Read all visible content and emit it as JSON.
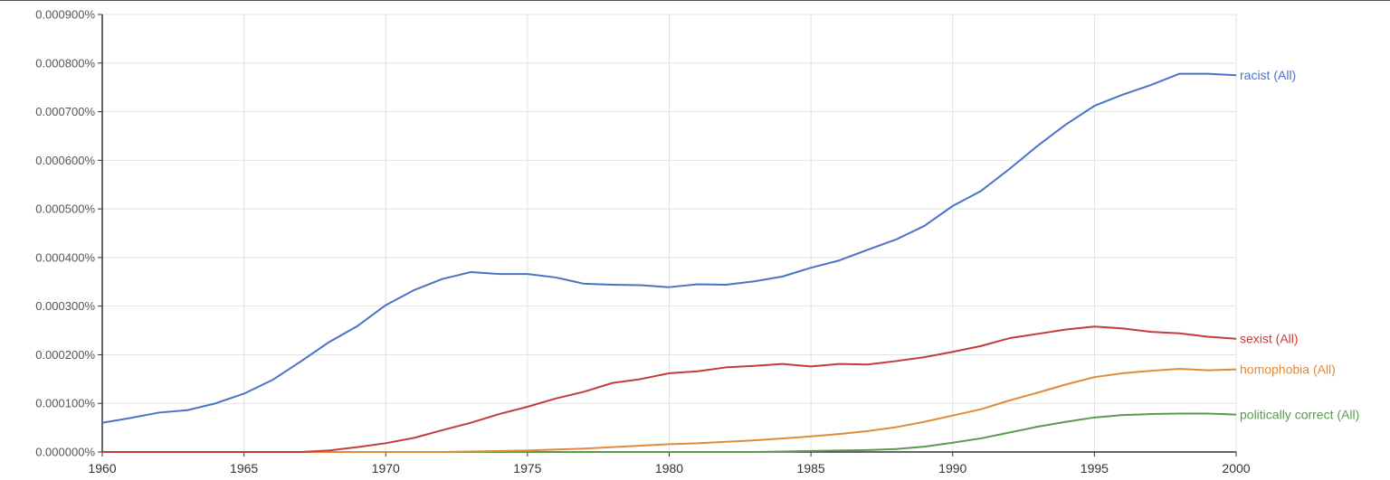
{
  "chart_data": {
    "type": "line",
    "title": "",
    "xlabel": "",
    "ylabel": "",
    "xlim": [
      1960,
      2000
    ],
    "ylim": [
      0,
      0.0009
    ],
    "grid": true,
    "legend": "end-of-line labels",
    "x_ticks": [
      "1960",
      "1965",
      "1970",
      "1975",
      "1980",
      "1985",
      "1990",
      "1995",
      "2000"
    ],
    "y_ticks": [
      "0.000000%",
      "0.000100%",
      "0.000200%",
      "0.000300%",
      "0.000400%",
      "0.000500%",
      "0.000600%",
      "0.000700%",
      "0.000800%",
      "0.000900%"
    ],
    "x": [
      1960,
      1961,
      1962,
      1963,
      1964,
      1965,
      1966,
      1967,
      1968,
      1969,
      1970,
      1971,
      1972,
      1973,
      1974,
      1975,
      1976,
      1977,
      1978,
      1979,
      1980,
      1981,
      1982,
      1983,
      1984,
      1985,
      1986,
      1987,
      1988,
      1989,
      1990,
      1991,
      1992,
      1993,
      1994,
      1995,
      1996,
      1997,
      1998,
      1999,
      2000
    ],
    "series": [
      {
        "name": "racist (All)",
        "color": "#4a73c6",
        "values": [
          6e-05,
          7e-05,
          8.1e-05,
          8.6e-05,
          0.0001,
          0.00012,
          0.000148,
          0.000186,
          0.000226,
          0.000259,
          0.000302,
          0.000333,
          0.000356,
          0.00037,
          0.000366,
          0.000366,
          0.000359,
          0.000346,
          0.000344,
          0.000343,
          0.000339,
          0.000345,
          0.000344,
          0.000351,
          0.000361,
          0.000379,
          0.000394,
          0.000416,
          0.000437,
          0.000465,
          0.000506,
          0.000537,
          0.000582,
          0.00063,
          0.000674,
          0.000712,
          0.000735,
          0.000755,
          0.000778,
          0.000778,
          0.000775
        ]
      },
      {
        "name": "sexist (All)",
        "color": "#c43b3b",
        "values": [
          0,
          0,
          0,
          0,
          0,
          0,
          0,
          0,
          3e-06,
          1e-05,
          1.8e-05,
          2.9e-05,
          4.5e-05,
          6e-05,
          7.8e-05,
          9.3e-05,
          0.00011,
          0.000124,
          0.000142,
          0.00015,
          0.000162,
          0.000166,
          0.000174,
          0.000177,
          0.000181,
          0.000176,
          0.000181,
          0.00018,
          0.000187,
          0.000195,
          0.000206,
          0.000218,
          0.000234,
          0.000243,
          0.000252,
          0.000258,
          0.000254,
          0.000247,
          0.000244,
          0.000237,
          0.000233
        ]
      },
      {
        "name": "homophobia (All)",
        "color": "#e08a3a",
        "values": [
          0,
          0,
          0,
          0,
          0,
          0,
          0,
          0,
          0,
          0,
          0,
          0,
          0,
          1e-06,
          2e-06,
          3e-06,
          5e-06,
          7e-06,
          1e-05,
          1.3e-05,
          1.6e-05,
          1.8e-05,
          2.1e-05,
          2.4e-05,
          2.8e-05,
          3.2e-05,
          3.7e-05,
          4.3e-05,
          5.1e-05,
          6.2e-05,
          7.5e-05,
          8.8e-05,
          0.000106,
          0.000122,
          0.000139,
          0.000154,
          0.000162,
          0.000167,
          0.000171,
          0.000168,
          0.00017
        ]
      },
      {
        "name": "politically correct (All)",
        "color": "#5a9a4f",
        "values": [
          0,
          0,
          0,
          0,
          0,
          0,
          0,
          0,
          0,
          0,
          0,
          0,
          0,
          0,
          0,
          0,
          0,
          0,
          0,
          0,
          0,
          0,
          0,
          0,
          1e-06,
          2e-06,
          3e-06,
          4e-06,
          6e-06,
          1.1e-05,
          1.9e-05,
          2.8e-05,
          4e-05,
          5.2e-05,
          6.2e-05,
          7.1e-05,
          7.6e-05,
          7.8e-05,
          7.9e-05,
          7.9e-05,
          7.7e-05
        ]
      }
    ]
  }
}
